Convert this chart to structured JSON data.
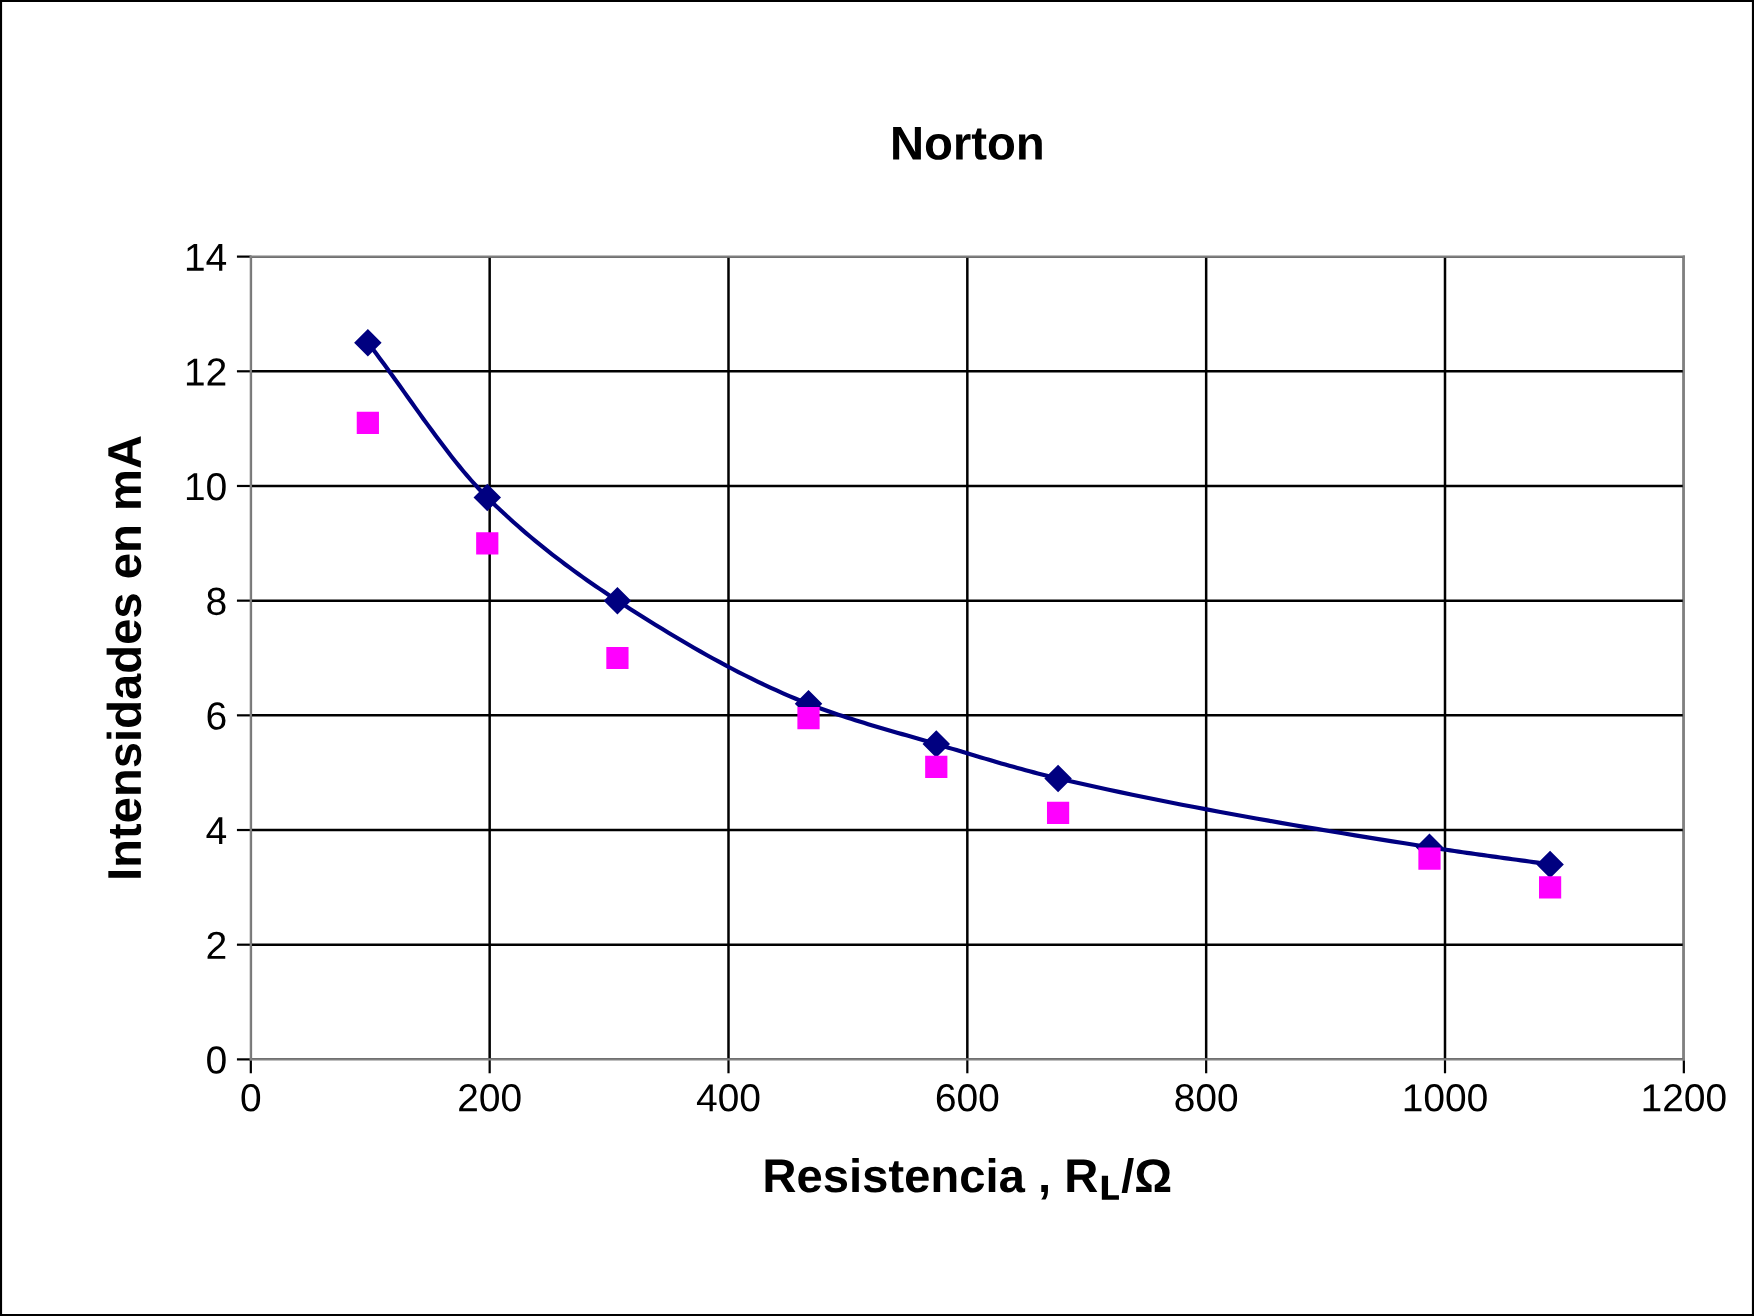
{
  "chart_data": {
    "type": "scatter",
    "title": "Norton",
    "xlabel": "Resistencia , R$_{L}$/Ω",
    "ylabel": "Intensidades en mA",
    "x": [
      98,
      198,
      307,
      467,
      574,
      676,
      987,
      1088
    ],
    "series": [
      {
        "type": "line",
        "color": "#000080",
        "marker": "diamond",
        "values": [
          12.5,
          9.8,
          8.0,
          6.2,
          5.5,
          4.9,
          3.7,
          3.4
        ]
      },
      {
        "color": "#ff00ff",
        "marker": "square",
        "values": [
          11.1,
          9.0,
          7.0,
          5.95,
          5.1,
          4.3,
          3.5,
          3.0
        ]
      }
    ],
    "xlim": [
      0,
      1200
    ],
    "xticks": [
      0,
      200,
      400,
      600,
      800,
      1000,
      1200
    ],
    "ylim": [
      0,
      14
    ],
    "yticks": [
      0,
      2,
      4,
      6,
      8,
      10,
      12,
      14
    ],
    "grid": true,
    "legend": false
  }
}
